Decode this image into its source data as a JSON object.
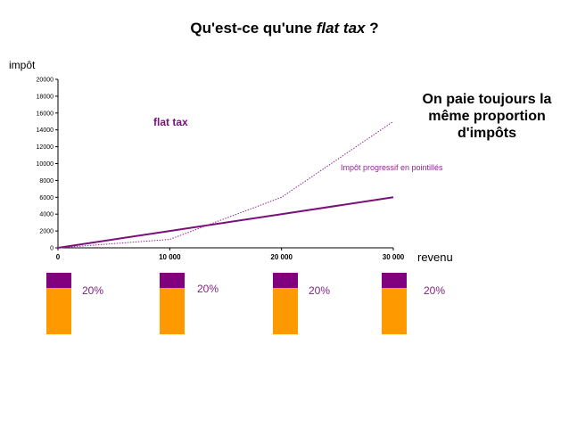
{
  "page": {
    "title_prefix": "Qu'est-ce qu'une ",
    "title_em": "flat tax",
    "title_suffix": " ?",
    "callout": "On paie toujours la même proportion d'impôts",
    "bar_percent_labels": [
      "20%",
      "20%",
      "20%",
      "20%"
    ]
  },
  "colors": {
    "flat_tax_line": "#7b0f7b",
    "progressive_line": "#8a2a8a",
    "bar_fill": "#ff9900",
    "bar_cap": "#800080"
  },
  "chart_data": {
    "type": "line",
    "ylabel": "impôt",
    "xlabel": "revenu",
    "xlim": [
      0,
      30000
    ],
    "ylim": [
      0,
      20000
    ],
    "x_tick_labels": [
      "0",
      "10 000",
      "20 000",
      "30 000"
    ],
    "y_tick_labels": [
      "0",
      "2000",
      "4000",
      "6000",
      "8000",
      "10000",
      "12000",
      "14000",
      "16000",
      "18000",
      "20000"
    ],
    "x": [
      0,
      10000,
      20000,
      30000
    ],
    "series": [
      {
        "name": "flat tax",
        "values": [
          0,
          2000,
          4000,
          6000
        ]
      },
      {
        "name": "Impôt progressif en pointillés",
        "values": [
          0,
          1000,
          6000,
          15000
        ]
      }
    ],
    "grid": false
  }
}
